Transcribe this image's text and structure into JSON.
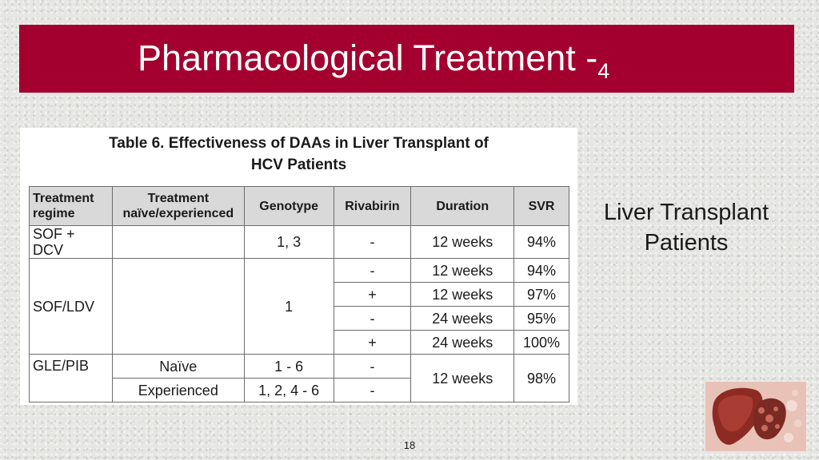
{
  "slide": {
    "title": "Pharmacological Treatment -",
    "title_subscript": "4",
    "side_label_line1": "Liver Transplant",
    "side_label_line2": "Patients",
    "page_number": "18",
    "accent_color": "#a3002f"
  },
  "table": {
    "caption_line1": "Table 6.  Effectiveness of DAAs in Liver Transplant of",
    "caption_line2": "HCV Patients",
    "headers": {
      "regime_line1": "Treatment",
      "regime_line2": "regime",
      "naive_line1": "Treatment",
      "naive_line2": "naïve/experienced",
      "genotype": "Genotype",
      "rivabirin": "Rivabirin",
      "duration": "Duration",
      "svr": "SVR"
    },
    "rows": [
      {
        "regime": "SOF + DCV",
        "naive": "",
        "genotype": "1, 3",
        "rivabirin": "-",
        "duration": "12 weeks",
        "svr": "94%"
      },
      {
        "regime": "SOF/LDV",
        "naive": "",
        "genotype": "1",
        "rivabirin": "-",
        "duration": "12 weeks",
        "svr": "94%"
      },
      {
        "rivabirin": "+",
        "duration": "12 weeks",
        "svr": "97%"
      },
      {
        "rivabirin": "-",
        "duration": "24 weeks",
        "svr": "95%"
      },
      {
        "rivabirin": "+",
        "duration": "24 weeks",
        "svr": "100%"
      },
      {
        "regime": "GLE/PIB",
        "naive": "Naïve",
        "genotype": "1 - 6",
        "rivabirin": "-",
        "duration": "12 weeks",
        "svr": "98%"
      },
      {
        "naive": "Experienced",
        "genotype": "1, 2, 4 - 6",
        "rivabirin": "-"
      }
    ]
  }
}
